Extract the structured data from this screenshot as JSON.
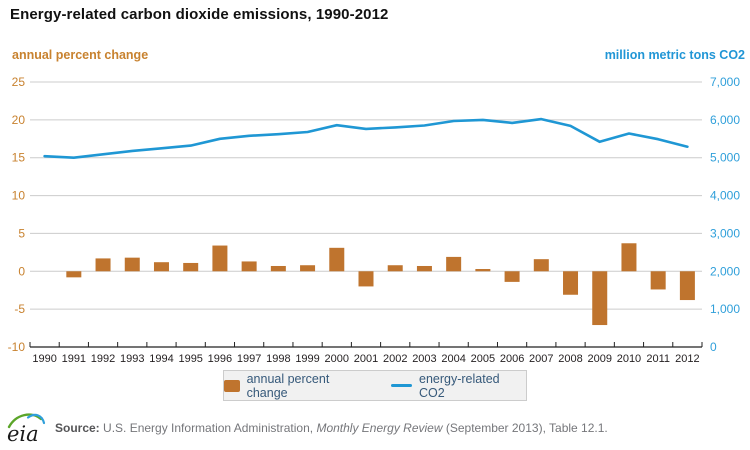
{
  "title": "Energy-related carbon dioxide emissions, 1990-2012",
  "axes": {
    "left_header": "annual percent change",
    "right_header": "million metric tons CO2",
    "left_tick_labels": [
      "25",
      "20",
      "15",
      "10",
      "5",
      "0",
      "-5",
      "-10"
    ],
    "right_tick_labels": [
      "7,000",
      "6,000",
      "5,000",
      "4,000",
      "3,000",
      "2,000",
      "1,000",
      "0"
    ]
  },
  "chart_data": {
    "type": "combo",
    "title": "Energy-related carbon dioxide emissions, 1990-2012",
    "categories": [
      1990,
      1991,
      1992,
      1993,
      1994,
      1995,
      1996,
      1997,
      1998,
      1999,
      2000,
      2001,
      2002,
      2003,
      2004,
      2005,
      2006,
      2007,
      2008,
      2009,
      2010,
      2011,
      2012
    ],
    "series": [
      {
        "name": "annual percent change",
        "type": "bar",
        "axis": "left",
        "color": "#bf742e",
        "values": [
          null,
          -0.8,
          1.7,
          1.8,
          1.2,
          1.1,
          3.4,
          1.3,
          0.7,
          0.8,
          3.1,
          -2.0,
          0.8,
          0.7,
          1.9,
          0.3,
          -1.4,
          1.6,
          -3.1,
          -7.1,
          3.7,
          -2.4,
          -3.8
        ]
      },
      {
        "name": "energy-related CO2",
        "type": "line",
        "axis": "right",
        "color": "#1f97d4",
        "values": [
          5040,
          5000,
          5090,
          5180,
          5250,
          5320,
          5500,
          5580,
          5620,
          5680,
          5860,
          5760,
          5800,
          5850,
          5970,
          6000,
          5920,
          6020,
          5840,
          5420,
          5640,
          5490,
          5290
        ]
      }
    ],
    "left_axis": {
      "label": "annual percent change",
      "range": [
        -10,
        25
      ],
      "ticks": [
        25,
        20,
        15,
        10,
        5,
        0,
        -5,
        -10
      ],
      "unit": "percent"
    },
    "right_axis": {
      "label": "million metric tons CO2",
      "range": [
        0,
        7000
      ],
      "ticks": [
        7000,
        6000,
        5000,
        4000,
        3000,
        2000,
        1000,
        0
      ],
      "unit": "million metric tons CO2"
    },
    "grid": true,
    "legend_position": "bottom"
  },
  "legend": {
    "bar_label": "annual percent change",
    "line_label": "energy-related CO2"
  },
  "footer": {
    "logo_text": "eia",
    "source_label": "Source:",
    "source_pre": " U.S. Energy Information Administration, ",
    "source_italic": "Monthly Energy Review",
    "source_post": " (September 2013), Table 12.1."
  },
  "colors": {
    "bar": "#bf742e",
    "line": "#1f97d4",
    "left_axis_text": "#c8822f",
    "right_axis_text": "#2f9fda",
    "year_text": "#231f20",
    "gridline": "#cccccc",
    "axis_line": "#222222",
    "legend_text": "#36597a",
    "title_text": "#111111"
  }
}
